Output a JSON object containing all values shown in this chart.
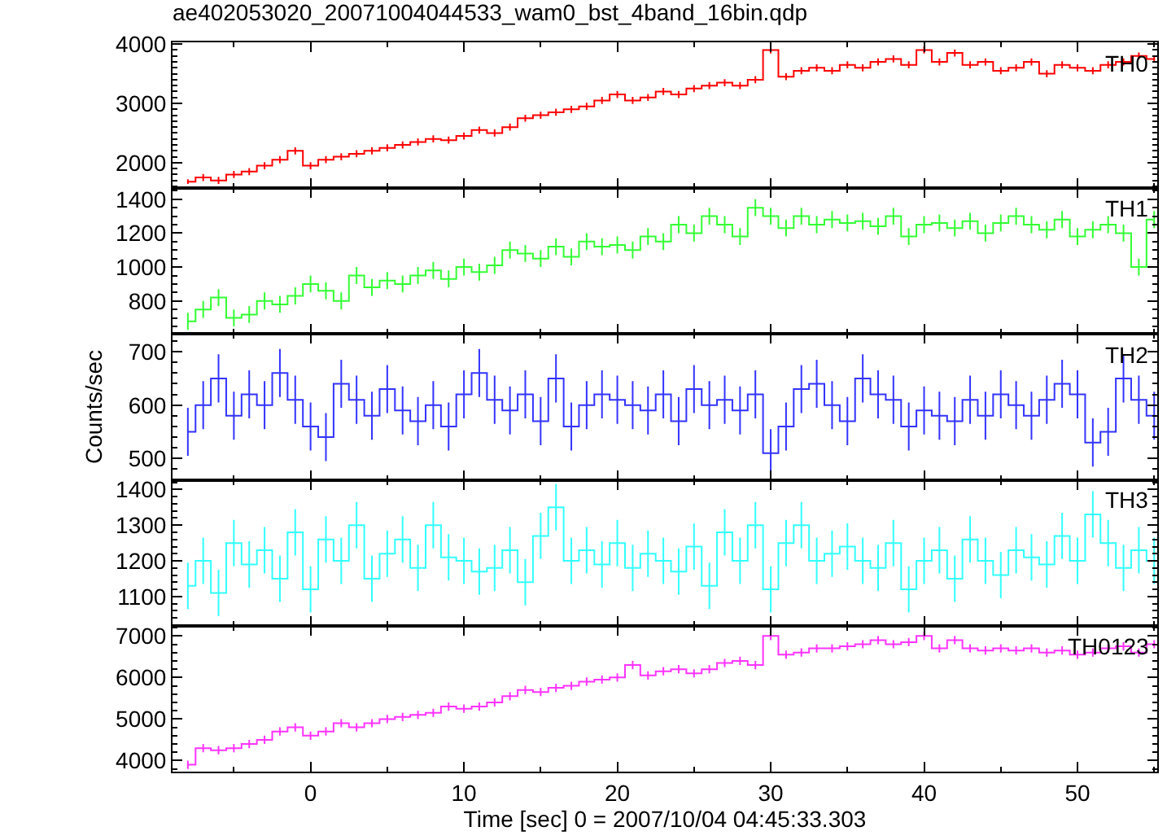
{
  "chart_data": [
    {
      "type": "step",
      "title": "ae402053020_20071004044533_wam0_bst_4band_16bin.qdp",
      "x": [
        -8,
        -7,
        -6,
        -5,
        -4,
        -3,
        -2,
        -1,
        0,
        1,
        2,
        3,
        4,
        5,
        6,
        7,
        8,
        9,
        10,
        11,
        12,
        13,
        14,
        15,
        16,
        17,
        18,
        19,
        20,
        21,
        22,
        23,
        24,
        25,
        26,
        27,
        28,
        29,
        30,
        31,
        32,
        33,
        34,
        35,
        36,
        37,
        38,
        39,
        40,
        41,
        42,
        43,
        44,
        45,
        46,
        47,
        48,
        49,
        50,
        51,
        52,
        53,
        54,
        55
      ],
      "xlim": [
        -9,
        55.2
      ],
      "xticks": [
        0,
        10,
        20,
        30,
        40,
        50
      ],
      "ylim": [
        1570,
        4030
      ],
      "yticks": [
        2000,
        3000,
        4000
      ],
      "tick_labels": "y",
      "series": [
        {
          "name": "TH0",
          "color": "#ff0000",
          "values": [
            1680,
            1750,
            1700,
            1800,
            1850,
            1950,
            2050,
            2200,
            1950,
            2050,
            2100,
            2150,
            2200,
            2250,
            2300,
            2350,
            2400,
            2380,
            2450,
            2550,
            2500,
            2600,
            2750,
            2800,
            2850,
            2900,
            2950,
            3050,
            3150,
            3050,
            3100,
            3200,
            3150,
            3250,
            3300,
            3350,
            3300,
            3400,
            3900,
            3450,
            3550,
            3600,
            3550,
            3650,
            3600,
            3700,
            3750,
            3650,
            3900,
            3700,
            3850,
            3650,
            3700,
            3550,
            3600,
            3700,
            3500,
            3650,
            3600,
            3550,
            3650,
            3700,
            3800,
            3750
          ],
          "errors": [
            40,
            60,
            60,
            60,
            60,
            60,
            60,
            60,
            60,
            60,
            60,
            60,
            60,
            60,
            60,
            60,
            60,
            60,
            60,
            60,
            60,
            60,
            60,
            60,
            60,
            60,
            60,
            60,
            60,
            60,
            60,
            60,
            60,
            60,
            60,
            60,
            60,
            60,
            60,
            60,
            60,
            60,
            60,
            60,
            60,
            60,
            60,
            60,
            60,
            60,
            60,
            60,
            60,
            60,
            60,
            60,
            60,
            60,
            60,
            60,
            60,
            60,
            60,
            60
          ]
        }
      ]
    },
    {
      "type": "step",
      "x": [
        -8,
        -7,
        -6,
        -5,
        -4,
        -3,
        -2,
        -1,
        0,
        1,
        2,
        3,
        4,
        5,
        6,
        7,
        8,
        9,
        10,
        11,
        12,
        13,
        14,
        15,
        16,
        17,
        18,
        19,
        20,
        21,
        22,
        23,
        24,
        25,
        26,
        27,
        28,
        29,
        30,
        31,
        32,
        33,
        34,
        35,
        36,
        37,
        38,
        39,
        40,
        41,
        42,
        43,
        44,
        45,
        46,
        47,
        48,
        49,
        50,
        51,
        52,
        53,
        54,
        55
      ],
      "xlim": [
        -9,
        55.2
      ],
      "xticks": [
        0,
        10,
        20,
        30,
        40,
        50
      ],
      "ylim": [
        605,
        1465
      ],
      "yticks": [
        800,
        1000,
        1200,
        1400
      ],
      "tick_labels": "y",
      "series": [
        {
          "name": "TH1",
          "color": "#33ff33",
          "values": [
            680,
            750,
            820,
            700,
            720,
            800,
            780,
            830,
            900,
            860,
            800,
            950,
            880,
            920,
            900,
            950,
            980,
            930,
            1000,
            970,
            1010,
            1100,
            1080,
            1050,
            1120,
            1060,
            1150,
            1120,
            1130,
            1100,
            1180,
            1150,
            1250,
            1200,
            1300,
            1250,
            1180,
            1350,
            1300,
            1230,
            1300,
            1250,
            1280,
            1260,
            1270,
            1240,
            1300,
            1180,
            1250,
            1260,
            1230,
            1270,
            1200,
            1260,
            1300,
            1250,
            1220,
            1280,
            1180,
            1220,
            1250,
            1200,
            1000,
            1280
          ],
          "errors": [
            50,
            50,
            50,
            50,
            50,
            50,
            50,
            50,
            50,
            50,
            50,
            50,
            50,
            50,
            50,
            50,
            50,
            50,
            50,
            50,
            50,
            50,
            50,
            50,
            50,
            50,
            50,
            50,
            50,
            50,
            50,
            50,
            50,
            50,
            50,
            50,
            50,
            50,
            50,
            50,
            50,
            50,
            50,
            50,
            50,
            50,
            50,
            50,
            50,
            50,
            50,
            50,
            50,
            50,
            50,
            50,
            50,
            50,
            50,
            50,
            50,
            50,
            50,
            50
          ]
        }
      ]
    },
    {
      "type": "step",
      "ylabel": "Counts/sec",
      "x": [
        -8,
        -7,
        -6,
        -5,
        -4,
        -3,
        -2,
        -1,
        0,
        1,
        2,
        3,
        4,
        5,
        6,
        7,
        8,
        9,
        10,
        11,
        12,
        13,
        14,
        15,
        16,
        17,
        18,
        19,
        20,
        21,
        22,
        23,
        24,
        25,
        26,
        27,
        28,
        29,
        30,
        31,
        32,
        33,
        34,
        35,
        36,
        37,
        38,
        39,
        40,
        41,
        42,
        43,
        44,
        45,
        46,
        47,
        48,
        49,
        50,
        51,
        52,
        53,
        54,
        55
      ],
      "xlim": [
        -9,
        55.2
      ],
      "xticks": [
        0,
        10,
        20,
        30,
        40,
        50
      ],
      "ylim": [
        460,
        733
      ],
      "yticks": [
        500,
        600,
        700
      ],
      "tick_labels": "y",
      "series": [
        {
          "name": "TH2",
          "color": "#3333ff",
          "values": [
            550,
            600,
            650,
            580,
            620,
            600,
            660,
            610,
            560,
            540,
            640,
            610,
            580,
            630,
            590,
            570,
            600,
            560,
            620,
            660,
            610,
            590,
            620,
            570,
            650,
            560,
            600,
            620,
            610,
            600,
            590,
            620,
            570,
            630,
            600,
            610,
            590,
            620,
            510,
            560,
            630,
            640,
            600,
            570,
            650,
            620,
            610,
            560,
            590,
            580,
            570,
            610,
            580,
            620,
            600,
            580,
            610,
            640,
            620,
            530,
            550,
            650,
            610,
            580
          ],
          "errors": [
            45,
            45,
            45,
            45,
            45,
            45,
            45,
            45,
            45,
            45,
            45,
            45,
            45,
            45,
            45,
            45,
            45,
            45,
            45,
            45,
            45,
            45,
            45,
            45,
            45,
            45,
            45,
            45,
            45,
            45,
            45,
            45,
            45,
            45,
            45,
            45,
            45,
            45,
            45,
            45,
            45,
            45,
            45,
            45,
            45,
            45,
            45,
            45,
            45,
            45,
            45,
            45,
            45,
            45,
            45,
            45,
            45,
            45,
            45,
            45,
            45,
            45,
            45,
            45
          ]
        }
      ]
    },
    {
      "type": "step",
      "x": [
        -8,
        -7,
        -6,
        -5,
        -4,
        -3,
        -2,
        -1,
        0,
        1,
        2,
        3,
        4,
        5,
        6,
        7,
        8,
        9,
        10,
        11,
        12,
        13,
        14,
        15,
        16,
        17,
        18,
        19,
        20,
        21,
        22,
        23,
        24,
        25,
        26,
        27,
        28,
        29,
        30,
        31,
        32,
        33,
        34,
        35,
        36,
        37,
        38,
        39,
        40,
        41,
        42,
        43,
        44,
        45,
        46,
        47,
        48,
        49,
        50,
        51,
        52,
        53,
        54,
        55
      ],
      "xlim": [
        -9,
        55.2
      ],
      "xticks": [
        0,
        10,
        20,
        30,
        40,
        50
      ],
      "ylim": [
        1018,
        1427
      ],
      "yticks": [
        1100,
        1200,
        1300,
        1400
      ],
      "tick_labels": "y",
      "series": [
        {
          "name": "TH3",
          "color": "#33ffff",
          "values": [
            1130,
            1200,
            1110,
            1250,
            1190,
            1230,
            1150,
            1280,
            1120,
            1260,
            1200,
            1300,
            1150,
            1220,
            1260,
            1180,
            1300,
            1210,
            1200,
            1170,
            1180,
            1230,
            1140,
            1270,
            1350,
            1200,
            1230,
            1190,
            1250,
            1180,
            1220,
            1200,
            1170,
            1240,
            1130,
            1280,
            1200,
            1300,
            1120,
            1250,
            1300,
            1200,
            1220,
            1240,
            1200,
            1180,
            1250,
            1120,
            1200,
            1230,
            1150,
            1260,
            1200,
            1160,
            1230,
            1210,
            1190,
            1270,
            1200,
            1330,
            1250,
            1180,
            1230,
            1200
          ],
          "errors": [
            65,
            65,
            65,
            65,
            65,
            65,
            65,
            65,
            65,
            65,
            65,
            65,
            65,
            65,
            65,
            65,
            65,
            65,
            65,
            65,
            65,
            65,
            65,
            65,
            65,
            65,
            65,
            65,
            65,
            65,
            65,
            65,
            65,
            65,
            65,
            65,
            65,
            65,
            65,
            65,
            65,
            65,
            65,
            65,
            65,
            65,
            65,
            65,
            65,
            65,
            65,
            65,
            65,
            65,
            65,
            65,
            65,
            65,
            65,
            65,
            65,
            65,
            65,
            65
          ]
        }
      ]
    },
    {
      "type": "step",
      "xlabel": "Time [sec] 0 = 2007/10/04 04:45:33.303",
      "x": [
        -8,
        -7,
        -6,
        -5,
        -4,
        -3,
        -2,
        -1,
        0,
        1,
        2,
        3,
        4,
        5,
        6,
        7,
        8,
        9,
        10,
        11,
        12,
        13,
        14,
        15,
        16,
        17,
        18,
        19,
        20,
        21,
        22,
        23,
        24,
        25,
        26,
        27,
        28,
        29,
        30,
        31,
        32,
        33,
        34,
        35,
        36,
        37,
        38,
        39,
        40,
        41,
        42,
        43,
        44,
        45,
        46,
        47,
        48,
        49,
        50,
        51,
        52,
        53,
        54,
        55
      ],
      "xlim": [
        -9,
        55.2
      ],
      "xticks": [
        0,
        10,
        20,
        30,
        40,
        50
      ],
      "ylim": [
        3735,
        7245
      ],
      "yticks": [
        4000,
        5000,
        6000,
        7000
      ],
      "series": [
        {
          "name": "TH0123",
          "color": "#ff33ff",
          "values": [
            3900,
            4300,
            4250,
            4300,
            4400,
            4500,
            4700,
            4800,
            4600,
            4700,
            4900,
            4800,
            4900,
            5000,
            5050,
            5100,
            5150,
            5300,
            5250,
            5300,
            5400,
            5550,
            5700,
            5650,
            5750,
            5800,
            5900,
            5950,
            6000,
            6300,
            6050,
            6150,
            6200,
            6100,
            6200,
            6350,
            6400,
            6300,
            7000,
            6550,
            6600,
            6700,
            6700,
            6750,
            6800,
            6900,
            6800,
            6850,
            7000,
            6700,
            6900,
            6700,
            6650,
            6700,
            6650,
            6700,
            6600,
            6650,
            6550,
            6600,
            6700,
            6750,
            6600,
            6800
          ],
          "errors": [
            100,
            100,
            100,
            100,
            100,
            100,
            100,
            100,
            100,
            100,
            100,
            100,
            100,
            100,
            100,
            100,
            100,
            100,
            100,
            100,
            100,
            100,
            100,
            100,
            100,
            100,
            100,
            100,
            100,
            100,
            100,
            100,
            100,
            100,
            100,
            100,
            100,
            100,
            100,
            100,
            100,
            100,
            100,
            100,
            100,
            100,
            100,
            100,
            100,
            100,
            100,
            100,
            100,
            100,
            100,
            100,
            100,
            100,
            100,
            100,
            100,
            100,
            100,
            100
          ]
        }
      ]
    }
  ]
}
